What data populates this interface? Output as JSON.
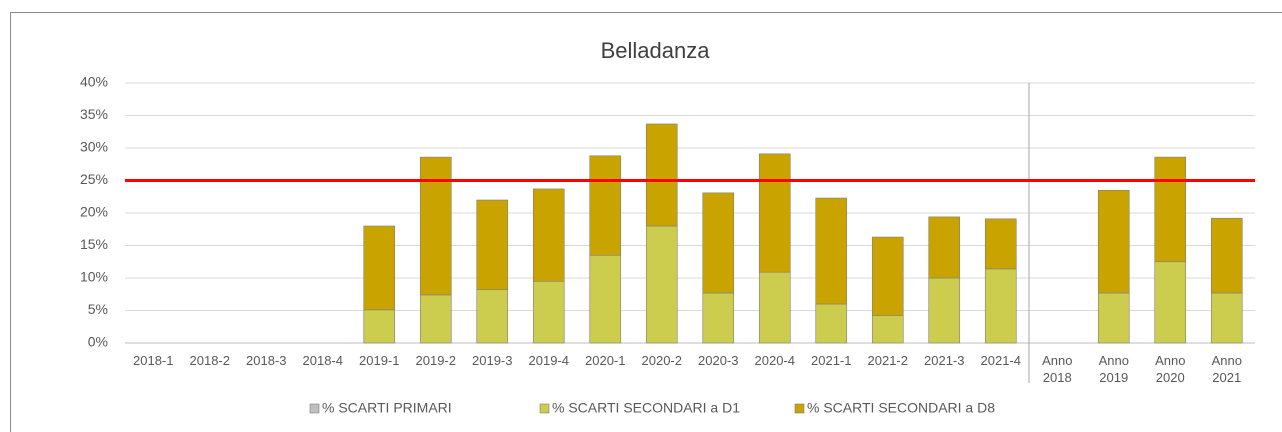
{
  "chart_data": {
    "type": "stacked_bar",
    "title": "Belladanza",
    "categories": [
      "2018-1",
      "2018-2",
      "2018-3",
      "2018-4",
      "2019-1",
      "2019-2",
      "2019-3",
      "2019-4",
      "2020-1",
      "2020-2",
      "2020-3",
      "2020-4",
      "2021-1",
      "2021-2",
      "2021-3",
      "2021-4",
      "Anno 2018",
      "Anno 2019",
      "Anno 2020",
      "Anno 2021"
    ],
    "series": [
      {
        "name": "% SCARTI PRIMARI",
        "color": "#bfbfbf",
        "values": [
          null,
          null,
          null,
          null,
          null,
          null,
          null,
          null,
          null,
          null,
          null,
          null,
          null,
          null,
          null,
          null,
          null,
          null,
          null,
          null
        ]
      },
      {
        "name": "% SCARTI SECONDARI a D1",
        "color": "#cccc4e",
        "values": [
          null,
          null,
          null,
          null,
          5.1,
          7.4,
          8.2,
          9.5,
          13.5,
          18.0,
          7.7,
          10.9,
          6.0,
          4.2,
          10.0,
          11.4,
          null,
          7.7,
          12.5,
          7.7
        ]
      },
      {
        "name": "% SCARTI SECONDARI a D8",
        "color": "#c9a400",
        "values": [
          null,
          null,
          null,
          null,
          12.9,
          21.2,
          13.8,
          14.2,
          15.3,
          15.7,
          15.4,
          18.2,
          16.3,
          12.1,
          9.4,
          7.7,
          null,
          15.8,
          16.1,
          11.5
        ]
      }
    ],
    "ylim": [
      0,
      40
    ],
    "yticks": [
      {
        "value": 0,
        "label": "0%"
      },
      {
        "value": 5,
        "label": "5%"
      },
      {
        "value": 10,
        "label": "10%"
      },
      {
        "value": 15,
        "label": "15%"
      },
      {
        "value": 20,
        "label": "20%"
      },
      {
        "value": 25,
        "label": "25%"
      },
      {
        "value": 30,
        "label": "30%"
      },
      {
        "value": 35,
        "label": "35%"
      },
      {
        "value": 40,
        "label": "40%"
      }
    ],
    "grid": true,
    "reference_line": {
      "value": 25,
      "color": "#ff0000"
    },
    "legend": "bottom"
  }
}
